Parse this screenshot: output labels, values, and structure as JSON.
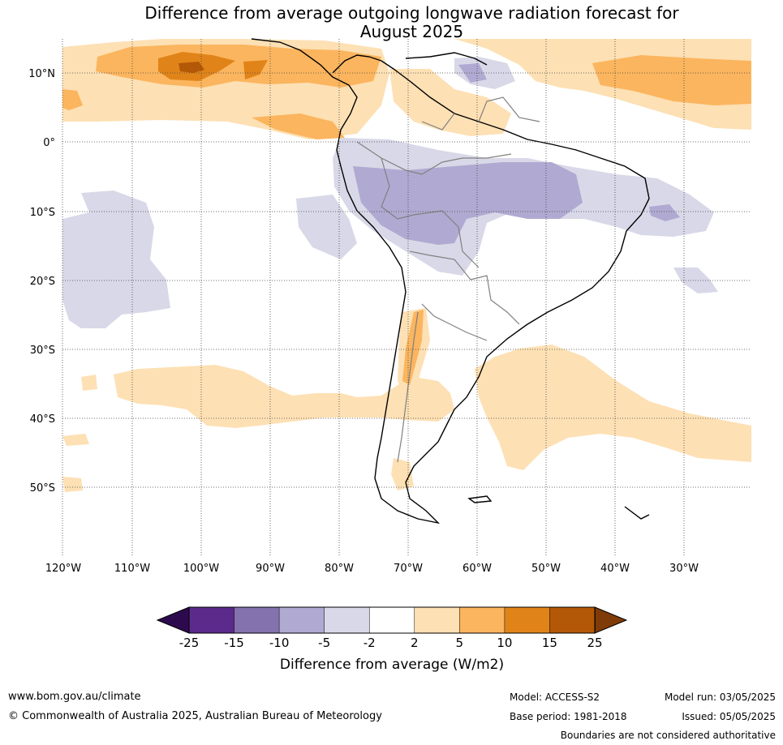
{
  "title_line1": "Difference from average outgoing longwave radiation forecast for",
  "title_line2": "August 2025",
  "lat_ticks": [
    "10°N",
    "0°",
    "10°S",
    "20°S",
    "30°S",
    "40°S",
    "50°S"
  ],
  "lon_ticks": [
    "120°W",
    "110°W",
    "100°W",
    "90°W",
    "80°W",
    "70°W",
    "60°W",
    "50°W",
    "40°W",
    "30°W"
  ],
  "colorbar": {
    "labels": [
      "-25",
      "-15",
      "-10",
      "-5",
      "-2",
      "2",
      "5",
      "10",
      "15",
      "25"
    ],
    "colors": [
      "#5b2a8a",
      "#8372ad",
      "#b0a9d1",
      "#d8d8e8",
      "#ffffff",
      "#fde0b4",
      "#fbb55e",
      "#e08419",
      "#b35807"
    ],
    "under_color": "#2d0a4e",
    "over_color": "#7f3b08",
    "title": "Difference from average (W/m2)"
  },
  "footer": {
    "website": "www.bom.gov.au/climate",
    "copyright": "© Commonwealth of Australia 2025, Australian Bureau of Meteorology",
    "model": "Model: ACCESS-S2",
    "base_period": "Base period: 1981-2018",
    "model_run": "Model run: 03/05/2025",
    "issued": "Issued: 05/05/2025",
    "disclaimer": "Boundaries are not considered authoritative"
  }
}
